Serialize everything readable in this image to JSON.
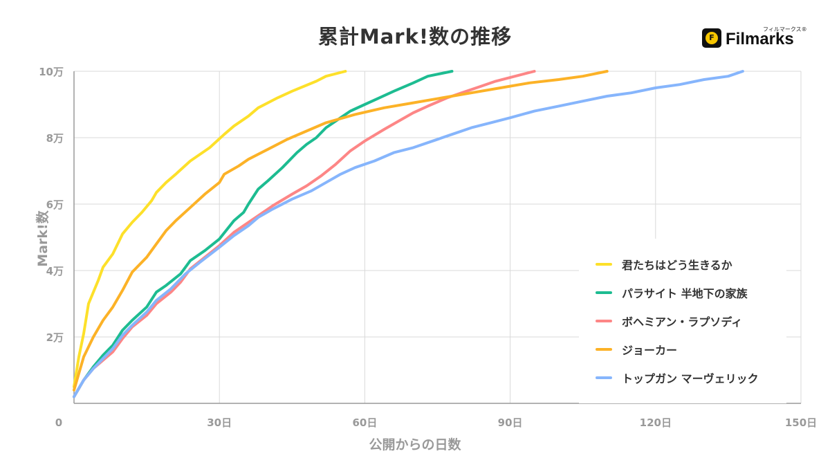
{
  "header": {
    "title": "累計Mark!数の推移",
    "brand_name": "Filmarks",
    "brand_kana": "フィルマークス®"
  },
  "chart_data": {
    "type": "line",
    "title": "累計Mark!数の推移",
    "xlabel": "公開からの日数",
    "ylabel": "Mark!数",
    "xlim": [
      0,
      150
    ],
    "ylim": [
      0,
      100000
    ],
    "x_ticks": [
      {
        "value": 0,
        "label": "0"
      },
      {
        "value": 30,
        "label": "30日"
      },
      {
        "value": 60,
        "label": "60日"
      },
      {
        "value": 90,
        "label": "90日"
      },
      {
        "value": 120,
        "label": "120日"
      },
      {
        "value": 150,
        "label": "150日"
      }
    ],
    "y_ticks": [
      {
        "value": 20000,
        "label": "2万"
      },
      {
        "value": 40000,
        "label": "4万"
      },
      {
        "value": 60000,
        "label": "6万"
      },
      {
        "value": 80000,
        "label": "8万"
      },
      {
        "value": 100000,
        "label": "10万"
      }
    ],
    "grid": true,
    "legend_position": "bottom-right",
    "series": [
      {
        "name": "君たちはどう生きるか",
        "color": "#fde02a",
        "points": [
          [
            0,
            5000
          ],
          [
            1,
            14000
          ],
          [
            2,
            21000
          ],
          [
            3,
            30000
          ],
          [
            5,
            37000
          ],
          [
            6,
            41000
          ],
          [
            8,
            45000
          ],
          [
            10,
            51000
          ],
          [
            12,
            54500
          ],
          [
            14,
            57500
          ],
          [
            16,
            61000
          ],
          [
            17,
            63500
          ],
          [
            19,
            66500
          ],
          [
            21,
            69000
          ],
          [
            24,
            73000
          ],
          [
            28,
            77000
          ],
          [
            31,
            81000
          ],
          [
            33,
            83500
          ],
          [
            36,
            86500
          ],
          [
            38,
            89000
          ],
          [
            42,
            92000
          ],
          [
            45,
            94000
          ],
          [
            50,
            97000
          ],
          [
            52,
            98500
          ],
          [
            56,
            100000
          ]
        ]
      },
      {
        "name": "パラサイト 半地下の家族",
        "color": "#1dbc91",
        "points": [
          [
            0,
            2000
          ],
          [
            2,
            7000
          ],
          [
            4,
            11000
          ],
          [
            6,
            14500
          ],
          [
            8,
            17500
          ],
          [
            10,
            22000
          ],
          [
            12,
            25000
          ],
          [
            15,
            29000
          ],
          [
            17,
            33500
          ],
          [
            19,
            35500
          ],
          [
            22,
            39000
          ],
          [
            24,
            43000
          ],
          [
            27,
            46000
          ],
          [
            30,
            49500
          ],
          [
            33,
            55000
          ],
          [
            35,
            57500
          ],
          [
            36,
            60000
          ],
          [
            38,
            64500
          ],
          [
            40,
            67000
          ],
          [
            43,
            71000
          ],
          [
            46,
            75500
          ],
          [
            48,
            78000
          ],
          [
            50,
            80000
          ],
          [
            52,
            83000
          ],
          [
            55,
            86000
          ],
          [
            57,
            88000
          ],
          [
            60,
            90000
          ],
          [
            63,
            92000
          ],
          [
            66,
            94000
          ],
          [
            70,
            96500
          ],
          [
            73,
            98500
          ],
          [
            78,
            100000
          ]
        ]
      },
      {
        "name": "ボヘミアン・ラプソディ",
        "color": "#fd8686",
        "points": [
          [
            0,
            2000
          ],
          [
            2,
            7000
          ],
          [
            4,
            10500
          ],
          [
            6,
            13000
          ],
          [
            8,
            15500
          ],
          [
            10,
            19500
          ],
          [
            12,
            23000
          ],
          [
            15,
            26500
          ],
          [
            17,
            30000
          ],
          [
            20,
            33500
          ],
          [
            22,
            36500
          ],
          [
            24,
            40500
          ],
          [
            27,
            44000
          ],
          [
            30,
            47500
          ],
          [
            33,
            51500
          ],
          [
            36,
            54500
          ],
          [
            38,
            56500
          ],
          [
            41,
            59500
          ],
          [
            45,
            63000
          ],
          [
            48,
            65500
          ],
          [
            51,
            68500
          ],
          [
            54,
            72000
          ],
          [
            57,
            76000
          ],
          [
            60,
            79000
          ],
          [
            64,
            82500
          ],
          [
            67,
            85000
          ],
          [
            70,
            87500
          ],
          [
            73,
            89500
          ],
          [
            77,
            92000
          ],
          [
            80,
            93500
          ],
          [
            84,
            95500
          ],
          [
            87,
            97000
          ],
          [
            91,
            98500
          ],
          [
            95,
            100000
          ]
        ]
      },
      {
        "name": "ジョーカー",
        "color": "#fcb227",
        "points": [
          [
            0,
            4000
          ],
          [
            2,
            14000
          ],
          [
            4,
            20000
          ],
          [
            6,
            25000
          ],
          [
            8,
            29000
          ],
          [
            10,
            34000
          ],
          [
            12,
            39500
          ],
          [
            15,
            44000
          ],
          [
            17,
            48000
          ],
          [
            19,
            52000
          ],
          [
            21,
            55000
          ],
          [
            24,
            59000
          ],
          [
            27,
            63000
          ],
          [
            30,
            66500
          ],
          [
            31,
            69000
          ],
          [
            34,
            71500
          ],
          [
            36,
            73500
          ],
          [
            40,
            76500
          ],
          [
            44,
            79500
          ],
          [
            48,
            82000
          ],
          [
            52,
            84500
          ],
          [
            58,
            87000
          ],
          [
            64,
            89000
          ],
          [
            70,
            90500
          ],
          [
            76,
            92000
          ],
          [
            82,
            93500
          ],
          [
            88,
            95000
          ],
          [
            94,
            96500
          ],
          [
            100,
            97500
          ],
          [
            105,
            98500
          ],
          [
            110,
            100000
          ]
        ]
      },
      {
        "name": "トップガン マーヴェリック",
        "color": "#86b5fc",
        "points": [
          [
            0,
            2000
          ],
          [
            2,
            7000
          ],
          [
            4,
            10500
          ],
          [
            6,
            13500
          ],
          [
            8,
            16500
          ],
          [
            10,
            20500
          ],
          [
            12,
            23500
          ],
          [
            15,
            27500
          ],
          [
            17,
            31000
          ],
          [
            20,
            34500
          ],
          [
            23,
            39000
          ],
          [
            26,
            42500
          ],
          [
            30,
            47000
          ],
          [
            33,
            50500
          ],
          [
            36,
            53500
          ],
          [
            38,
            56000
          ],
          [
            41,
            58500
          ],
          [
            45,
            61500
          ],
          [
            49,
            64000
          ],
          [
            52,
            66500
          ],
          [
            55,
            69000
          ],
          [
            58,
            71000
          ],
          [
            62,
            73000
          ],
          [
            66,
            75500
          ],
          [
            70,
            77000
          ],
          [
            74,
            79000
          ],
          [
            78,
            81000
          ],
          [
            82,
            83000
          ],
          [
            86,
            84500
          ],
          [
            90,
            86000
          ],
          [
            95,
            88000
          ],
          [
            100,
            89500
          ],
          [
            105,
            91000
          ],
          [
            110,
            92500
          ],
          [
            115,
            93500
          ],
          [
            120,
            95000
          ],
          [
            125,
            96000
          ],
          [
            130,
            97500
          ],
          [
            135,
            98500
          ],
          [
            138,
            100000
          ]
        ]
      }
    ]
  }
}
